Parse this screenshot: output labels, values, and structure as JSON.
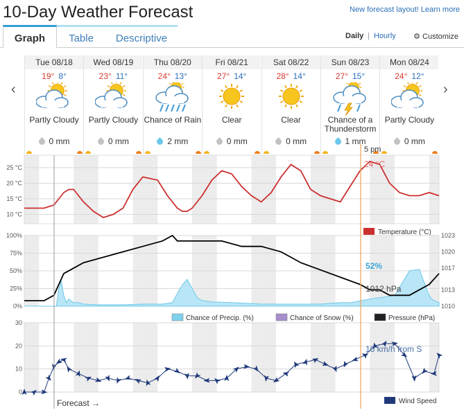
{
  "page": {
    "title": "10-Day Weather Forecast",
    "top_link": "New forecast layout! Learn more",
    "tabs": [
      "Graph",
      "Table",
      "Descriptive"
    ],
    "active_tab": "Graph",
    "view_daily": "Daily",
    "view_sep": "|",
    "view_hourly": "Hourly",
    "customize": "Customize",
    "prev_arrow": "‹",
    "next_arrow": "›"
  },
  "days": [
    {
      "date": "Tue 08/18",
      "hi": "19°",
      "lo": "8°",
      "icon": "partly-cloudy-icon",
      "cond": "Partly Cloudy",
      "precip": "0 mm",
      "wet": false
    },
    {
      "date": "Wed 08/19",
      "hi": "23°",
      "lo": "11°",
      "icon": "partly-cloudy-icon",
      "cond": "Partly Cloudy",
      "precip": "0 mm",
      "wet": false
    },
    {
      "date": "Thu 08/20",
      "hi": "24°",
      "lo": "13°",
      "icon": "rain-icon",
      "cond": "Chance of Rain",
      "precip": "2 mm",
      "wet": true
    },
    {
      "date": "Fri 08/21",
      "hi": "27°",
      "lo": "14°",
      "icon": "sun-icon",
      "cond": "Clear",
      "precip": "0 mm",
      "wet": false
    },
    {
      "date": "Sat 08/22",
      "hi": "28°",
      "lo": "14°",
      "icon": "sun-icon",
      "cond": "Clear",
      "precip": "0 mm",
      "wet": false
    },
    {
      "date": "Sun 08/23",
      "hi": "27°",
      "lo": "15°",
      "icon": "thunderstorm-icon",
      "cond": "Chance of a Thunderstorm",
      "precip": "1 mm",
      "wet": true
    },
    {
      "date": "Mon 08/24",
      "hi": "24°",
      "lo": "12°",
      "icon": "partly-cloudy-icon",
      "cond": "Partly Cloudy",
      "precip": "0 mm",
      "wet": false
    }
  ],
  "chart_data": [
    {
      "type": "line",
      "x_unit": "hours from Tue 08/18 00:00",
      "ylim": [
        7,
        29
      ],
      "yticks": [
        "25 °C",
        "20 °C",
        "15 °C",
        "10 °C"
      ],
      "ytick_values": [
        25,
        20,
        15,
        10
      ],
      "series": [
        {
          "name": "Temperature (°C)",
          "color": "#cc2f2f",
          "x": [
            0,
            8,
            12,
            14,
            16,
            18,
            20,
            22,
            24,
            28,
            32,
            36,
            40,
            44,
            48,
            54,
            58,
            60,
            62,
            64,
            66,
            68,
            72,
            76,
            80,
            84,
            88,
            92,
            96,
            100,
            104,
            108,
            112,
            116,
            120,
            124,
            128,
            132,
            136,
            140,
            144,
            148,
            152,
            156,
            160,
            164,
            168
          ],
          "values": [
            12,
            12,
            13,
            15,
            17,
            18,
            18,
            16,
            14,
            11,
            9,
            10,
            12,
            18,
            22,
            21,
            16,
            14,
            12,
            11,
            11,
            12,
            16,
            21,
            24,
            23,
            19,
            16,
            14,
            17,
            22,
            26,
            24,
            18,
            16,
            15,
            14,
            19,
            24,
            27,
            26,
            20,
            17,
            16,
            16,
            17,
            16
          ]
        }
      ],
      "legend": [
        "Temperature (°C)"
      ],
      "annotation": {
        "time": "5 pm",
        "value": "24 °C"
      }
    },
    {
      "type": "area",
      "ylim_left": [
        0,
        100
      ],
      "yticks_left": [
        "100%",
        "75%",
        "50%",
        "25%",
        "0%"
      ],
      "ytick_values_left": [
        100,
        75,
        50,
        25,
        0
      ],
      "ylim_right": [
        1010,
        1023
      ],
      "yticks_right": [
        "1023",
        "1020",
        "1017",
        "1013",
        "1010"
      ],
      "ytick_values_right": [
        1023,
        1020,
        1017,
        1013,
        1010
      ],
      "series": [
        {
          "name": "Chance of Precip. (%)",
          "color": "#7fd0ec",
          "x": [
            0,
            13,
            14,
            15,
            16,
            17,
            18,
            20,
            22,
            24,
            30,
            40,
            48,
            56,
            60,
            62,
            64,
            66,
            68,
            70,
            72,
            76,
            84,
            90,
            96,
            104,
            112,
            120,
            128,
            132,
            140,
            144,
            150,
            156,
            160,
            164,
            165,
            166,
            168
          ],
          "values": [
            0,
            0,
            25,
            35,
            15,
            5,
            10,
            5,
            5,
            3,
            2,
            2,
            3,
            3,
            5,
            18,
            30,
            38,
            25,
            12,
            8,
            6,
            5,
            4,
            3,
            3,
            3,
            3,
            5,
            5,
            10,
            12,
            15,
            50,
            52,
            15,
            10,
            8,
            5
          ]
        },
        {
          "name": "Chance of Snow (%)",
          "color": "#a78fcc",
          "x": [],
          "values": []
        },
        {
          "name": "Pressure (hPa)",
          "color": "#000000",
          "x": [
            0,
            4,
            8,
            12,
            14,
            16,
            20,
            24,
            32,
            40,
            48,
            56,
            60,
            62,
            64,
            68,
            72,
            80,
            88,
            96,
            104,
            108,
            112,
            118,
            124,
            130,
            136,
            140,
            144,
            148,
            152,
            156,
            160,
            164,
            168
          ],
          "values": [
            1011,
            1011,
            1011,
            1012,
            1014,
            1016,
            1017,
            1018,
            1019,
            1020,
            1021,
            1022,
            1023,
            1022,
            1022,
            1022,
            1022,
            1022,
            1021,
            1021,
            1020,
            1019,
            1018,
            1017,
            1016,
            1015,
            1014,
            1013,
            1013,
            1012,
            1012,
            1012,
            1013,
            1014,
            1016
          ]
        }
      ],
      "legend": [
        "Chance of Precip. (%)",
        "Chance of Snow (%)",
        "Pressure (hPa)"
      ],
      "annotation": {
        "precip": "52%",
        "pressure": "1012 hPa"
      }
    },
    {
      "type": "line",
      "ylim": [
        0,
        30
      ],
      "yticks": [
        "30",
        "20",
        "10",
        "0"
      ],
      "ytick_values": [
        30,
        20,
        10,
        0
      ],
      "series": [
        {
          "name": "Wind Speed",
          "color": "#1f3a7a",
          "x": [
            0,
            4,
            8,
            10,
            12,
            14,
            16,
            18,
            22,
            26,
            30,
            34,
            38,
            42,
            46,
            50,
            54,
            58,
            62,
            66,
            70,
            74,
            78,
            82,
            86,
            90,
            94,
            98,
            102,
            106,
            110,
            114,
            118,
            122,
            126,
            130,
            134,
            138,
            142,
            146,
            150,
            154,
            158,
            162,
            166,
            168
          ],
          "values": [
            0,
            0,
            0,
            6,
            11,
            13,
            14,
            10,
            8,
            6,
            5,
            6,
            5,
            6,
            5,
            4,
            6,
            10,
            9,
            7,
            7,
            5,
            5,
            6,
            10,
            11,
            10,
            6,
            5,
            8,
            12,
            13,
            14,
            12,
            10,
            12,
            14,
            16,
            20,
            21,
            21,
            16,
            6,
            9,
            8,
            16
          ]
        }
      ],
      "legend": [
        "Wind Speed"
      ],
      "annotation": {
        "value": "16 km/h from S"
      }
    }
  ],
  "forecast_label": "Forecast →"
}
